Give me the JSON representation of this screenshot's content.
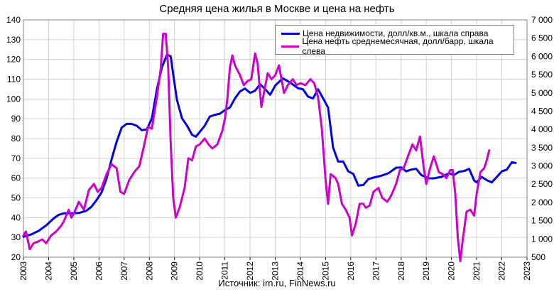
{
  "colors": {
    "property": "#0000e0",
    "oil": "#cc00cc",
    "grid": "#d0d0d0",
    "axis": "#000000",
    "background": "#ffffff"
  },
  "chart_data": {
    "type": "line",
    "title": "Средняя цена жилья в Москве и цена на нефть",
    "source": "Источник: irn.ru, FinNews.ru",
    "grid": true,
    "legend_position": "top-right",
    "x_range": [
      2003,
      2023
    ],
    "x_ticks": [
      "2003",
      "2004",
      "2005",
      "2006",
      "2007",
      "2008",
      "2009",
      "2010",
      "2011",
      "2012",
      "2013",
      "2014",
      "2015",
      "2016",
      "2017",
      "2018",
      "2019",
      "2020",
      "2021",
      "2022",
      "2023"
    ],
    "y_left": {
      "range": [
        20,
        140
      ],
      "ticks": [
        20,
        30,
        40,
        50,
        60,
        70,
        80,
        90,
        100,
        110,
        120,
        130,
        140
      ],
      "tick_labels": [
        "20",
        "30",
        "40",
        "50",
        "60",
        "70",
        "80",
        "90",
        "100",
        "110",
        "120",
        "130",
        "140"
      ]
    },
    "y_right": {
      "range": [
        500,
        7000
      ],
      "ticks": [
        500,
        1000,
        1500,
        2000,
        2500,
        3000,
        3500,
        4000,
        4500,
        5000,
        5500,
        6000,
        6500,
        7000
      ],
      "tick_labels": [
        "500",
        "1 000",
        "1 500",
        "2 000",
        "2 500",
        "3 000",
        "3 500",
        "4 000",
        "4 500",
        "5 000",
        "5 500",
        "6 000",
        "6 500",
        "7 000"
      ]
    },
    "series": [
      {
        "name": "Цена недвижимости, долл/кв.м., шкала справа",
        "axis": "right",
        "color": "#0000e0",
        "points": [
          [
            2003.0,
            1060
          ],
          [
            2003.3,
            1120
          ],
          [
            2003.6,
            1220
          ],
          [
            2003.9,
            1370
          ],
          [
            2004.2,
            1560
          ],
          [
            2004.4,
            1660
          ],
          [
            2004.6,
            1700
          ],
          [
            2004.9,
            1700
          ],
          [
            2005.2,
            1710
          ],
          [
            2005.5,
            1770
          ],
          [
            2005.7,
            1880
          ],
          [
            2005.9,
            2060
          ],
          [
            2006.1,
            2270
          ],
          [
            2006.3,
            2650
          ],
          [
            2006.5,
            3180
          ],
          [
            2006.7,
            3660
          ],
          [
            2006.9,
            4050
          ],
          [
            2007.1,
            4150
          ],
          [
            2007.3,
            4150
          ],
          [
            2007.5,
            4100
          ],
          [
            2007.7,
            3980
          ],
          [
            2007.9,
            4000
          ],
          [
            2008.1,
            4300
          ],
          [
            2008.3,
            5100
          ],
          [
            2008.5,
            5700
          ],
          [
            2008.7,
            6050
          ],
          [
            2008.85,
            6000
          ],
          [
            2008.95,
            5500
          ],
          [
            2009.1,
            4800
          ],
          [
            2009.3,
            4300
          ],
          [
            2009.5,
            4100
          ],
          [
            2009.7,
            3850
          ],
          [
            2009.85,
            3800
          ],
          [
            2010.0,
            3930
          ],
          [
            2010.2,
            4100
          ],
          [
            2010.4,
            4350
          ],
          [
            2010.6,
            4400
          ],
          [
            2010.8,
            4430
          ],
          [
            2011.0,
            4530
          ],
          [
            2011.2,
            4600
          ],
          [
            2011.4,
            4850
          ],
          [
            2011.6,
            5040
          ],
          [
            2011.8,
            5120
          ],
          [
            2012.0,
            5000
          ],
          [
            2012.2,
            5060
          ],
          [
            2012.4,
            5240
          ],
          [
            2012.6,
            5100
          ],
          [
            2012.8,
            4950
          ],
          [
            2013.0,
            5200
          ],
          [
            2013.3,
            5400
          ],
          [
            2013.6,
            5280
          ],
          [
            2013.9,
            5130
          ],
          [
            2014.1,
            5100
          ],
          [
            2014.3,
            4900
          ],
          [
            2014.5,
            4850
          ],
          [
            2014.7,
            5100
          ],
          [
            2014.9,
            4850
          ],
          [
            2015.1,
            4600
          ],
          [
            2015.3,
            3500
          ],
          [
            2015.5,
            3120
          ],
          [
            2015.7,
            3120
          ],
          [
            2015.9,
            2850
          ],
          [
            2016.1,
            2780
          ],
          [
            2016.3,
            2460
          ],
          [
            2016.5,
            2480
          ],
          [
            2016.7,
            2640
          ],
          [
            2016.9,
            2680
          ],
          [
            2017.2,
            2730
          ],
          [
            2017.5,
            2800
          ],
          [
            2017.8,
            2950
          ],
          [
            2018.0,
            2960
          ],
          [
            2018.2,
            2850
          ],
          [
            2018.4,
            2900
          ],
          [
            2018.6,
            2920
          ],
          [
            2018.8,
            2750
          ],
          [
            2019.1,
            2660
          ],
          [
            2019.3,
            2660
          ],
          [
            2019.6,
            2700
          ],
          [
            2019.9,
            2800
          ],
          [
            2020.1,
            2750
          ],
          [
            2020.3,
            2840
          ],
          [
            2020.5,
            2860
          ],
          [
            2020.7,
            2920
          ],
          [
            2020.9,
            2600
          ],
          [
            2021.0,
            2550
          ],
          [
            2021.2,
            2700
          ],
          [
            2021.4,
            2610
          ],
          [
            2021.6,
            2550
          ],
          [
            2021.8,
            2700
          ],
          [
            2022.0,
            2850
          ],
          [
            2022.2,
            2900
          ],
          [
            2022.4,
            3100
          ],
          [
            2022.55,
            3080
          ]
        ]
      },
      {
        "name": "Цена нефть среднемесячная, долл/барр, шкала слева",
        "axis": "left",
        "color": "#cc00cc",
        "points": [
          [
            2003.0,
            31
          ],
          [
            2003.1,
            33
          ],
          [
            2003.25,
            24
          ],
          [
            2003.4,
            27
          ],
          [
            2003.6,
            28
          ],
          [
            2003.75,
            29
          ],
          [
            2003.9,
            27
          ],
          [
            2004.1,
            31
          ],
          [
            2004.3,
            33
          ],
          [
            2004.5,
            36
          ],
          [
            2004.6,
            38
          ],
          [
            2004.8,
            44
          ],
          [
            2004.9,
            40
          ],
          [
            2005.0,
            42
          ],
          [
            2005.2,
            48
          ],
          [
            2005.4,
            44
          ],
          [
            2005.6,
            54
          ],
          [
            2005.8,
            57
          ],
          [
            2005.95,
            53
          ],
          [
            2006.1,
            55
          ],
          [
            2006.3,
            62
          ],
          [
            2006.5,
            67
          ],
          [
            2006.7,
            65
          ],
          [
            2006.85,
            53
          ],
          [
            2007.0,
            52
          ],
          [
            2007.2,
            59
          ],
          [
            2007.4,
            63
          ],
          [
            2007.6,
            66
          ],
          [
            2007.8,
            77
          ],
          [
            2007.95,
            86
          ],
          [
            2008.1,
            85
          ],
          [
            2008.3,
            101
          ],
          [
            2008.45,
            115
          ],
          [
            2008.55,
            133
          ],
          [
            2008.65,
            133
          ],
          [
            2008.75,
            116
          ],
          [
            2008.85,
            77
          ],
          [
            2008.95,
            50
          ],
          [
            2009.05,
            40
          ],
          [
            2009.2,
            45
          ],
          [
            2009.4,
            55
          ],
          [
            2009.55,
            70
          ],
          [
            2009.7,
            69
          ],
          [
            2009.85,
            76
          ],
          [
            2010.0,
            77
          ],
          [
            2010.2,
            80
          ],
          [
            2010.35,
            77
          ],
          [
            2010.5,
            75
          ],
          [
            2010.7,
            77
          ],
          [
            2010.9,
            84
          ],
          [
            2011.0,
            90
          ],
          [
            2011.1,
            100
          ],
          [
            2011.2,
            116
          ],
          [
            2011.3,
            122
          ],
          [
            2011.4,
            117
          ],
          [
            2011.6,
            112
          ],
          [
            2011.75,
            107
          ],
          [
            2011.9,
            109
          ],
          [
            2012.05,
            110
          ],
          [
            2012.2,
            123
          ],
          [
            2012.3,
            118
          ],
          [
            2012.45,
            96
          ],
          [
            2012.55,
            103
          ],
          [
            2012.7,
            113
          ],
          [
            2012.85,
            110
          ],
          [
            2013.0,
            112
          ],
          [
            2013.15,
            117
          ],
          [
            2013.35,
            103
          ],
          [
            2013.5,
            107
          ],
          [
            2013.7,
            110
          ],
          [
            2013.85,
            107
          ],
          [
            2014.0,
            108
          ],
          [
            2014.2,
            107
          ],
          [
            2014.4,
            110
          ],
          [
            2014.55,
            108
          ],
          [
            2014.7,
            101
          ],
          [
            2014.85,
            85
          ],
          [
            2015.0,
            59
          ],
          [
            2015.1,
            47
          ],
          [
            2015.2,
            62
          ],
          [
            2015.4,
            60
          ],
          [
            2015.5,
            57
          ],
          [
            2015.65,
            47
          ],
          [
            2015.8,
            44
          ],
          [
            2015.95,
            40
          ],
          [
            2016.05,
            31
          ],
          [
            2016.2,
            37
          ],
          [
            2016.35,
            47
          ],
          [
            2016.5,
            47
          ],
          [
            2016.6,
            45
          ],
          [
            2016.75,
            46
          ],
          [
            2016.9,
            53
          ],
          [
            2017.1,
            55
          ],
          [
            2017.25,
            50
          ],
          [
            2017.45,
            48
          ],
          [
            2017.6,
            51
          ],
          [
            2017.8,
            57
          ],
          [
            2017.95,
            64
          ],
          [
            2018.1,
            65
          ],
          [
            2018.3,
            72
          ],
          [
            2018.45,
            77
          ],
          [
            2018.6,
            74
          ],
          [
            2018.75,
            81
          ],
          [
            2018.9,
            65
          ],
          [
            2019.0,
            57
          ],
          [
            2019.15,
            65
          ],
          [
            2019.3,
            71
          ],
          [
            2019.5,
            63
          ],
          [
            2019.65,
            62
          ],
          [
            2019.8,
            60
          ],
          [
            2019.95,
            64
          ],
          [
            2020.05,
            64
          ],
          [
            2020.15,
            52
          ],
          [
            2020.25,
            30
          ],
          [
            2020.35,
            18
          ],
          [
            2020.45,
            29
          ],
          [
            2020.6,
            43
          ],
          [
            2020.75,
            44
          ],
          [
            2020.9,
            41
          ],
          [
            2021.0,
            52
          ],
          [
            2021.15,
            63
          ],
          [
            2021.3,
            65
          ],
          [
            2021.4,
            69
          ],
          [
            2021.5,
            74
          ]
        ]
      }
    ]
  }
}
